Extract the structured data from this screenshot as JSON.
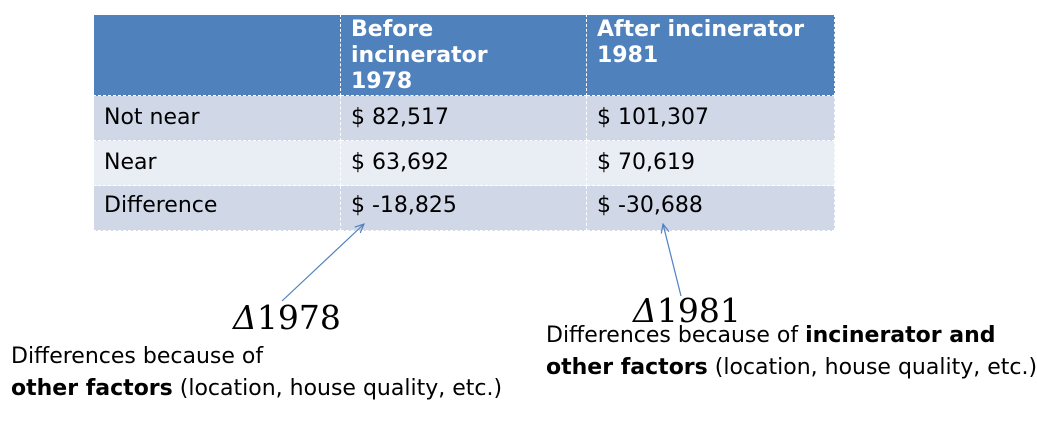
{
  "table": {
    "headers": [
      "",
      "Before incinerator 1978",
      "After incinerator 1981"
    ],
    "header_lines": [
      [
        "",
        ""
      ],
      [
        "Before incinerator",
        "1978"
      ],
      [
        "After incinerator",
        "1981"
      ]
    ],
    "rows": [
      [
        "Not near",
        "$ 82,517",
        "$  101,307"
      ],
      [
        "Near",
        "$ 63,692",
        "$ 70,619"
      ],
      [
        "Difference",
        "$ -18,825",
        "$ -30,688"
      ]
    ],
    "colors": {
      "header_bg": "#4f81bd",
      "row_dark": "#d0d8e8",
      "row_light": "#e9edf4",
      "arrow": "#4f81bd"
    }
  },
  "annotations": {
    "left": {
      "delta_symbol": "Δ",
      "delta_year": "1978",
      "line1": "Differences because of",
      "line2_bold": "other factors",
      "line2_rest": " (location, house quality, etc.)"
    },
    "right": {
      "delta_symbol": "Δ",
      "delta_year": "1981",
      "line1_plain": "Differences because of ",
      "line1_bold": "incinerator and",
      "line2_bold": "other factors",
      "line2_rest": " (location, house quality, etc.)"
    }
  }
}
